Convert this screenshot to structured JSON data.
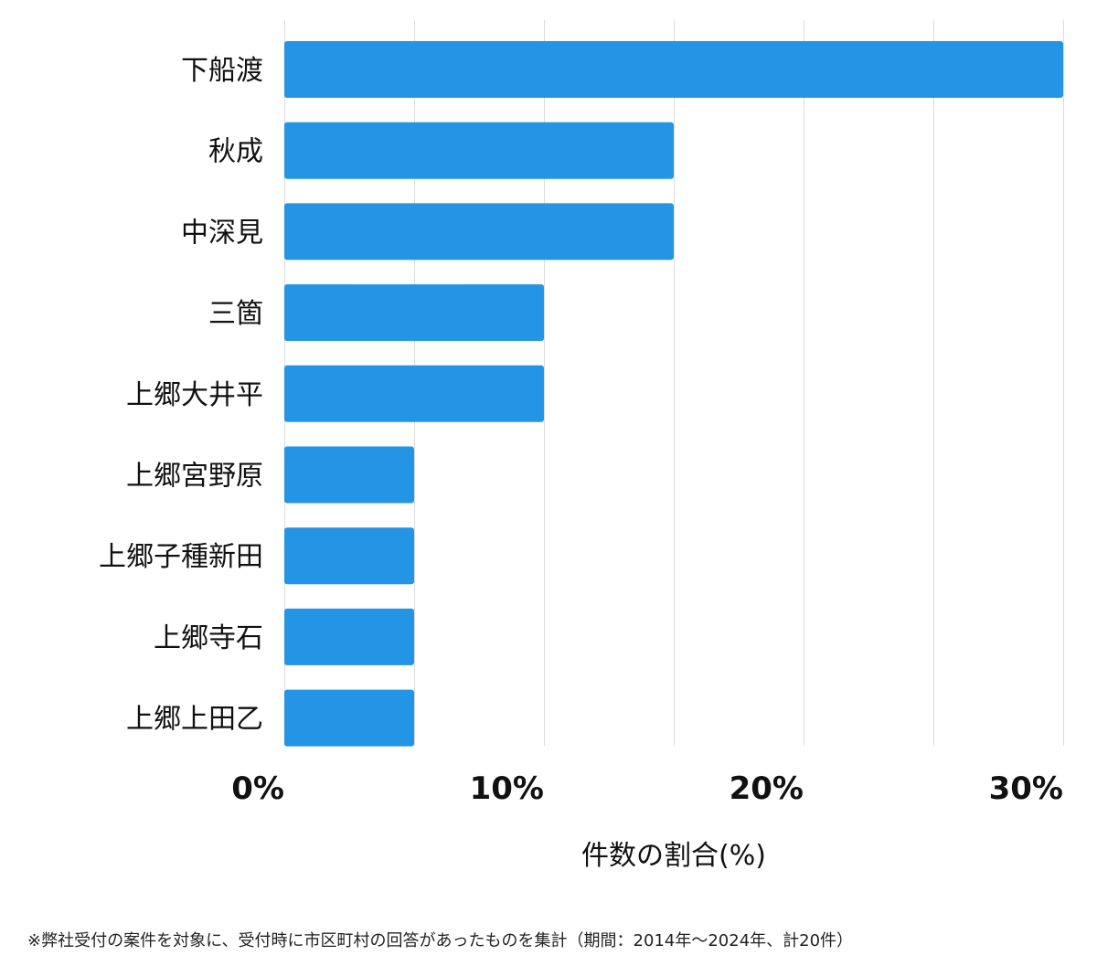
{
  "chart_data": {
    "type": "bar",
    "orientation": "horizontal",
    "categories": [
      "下船渡",
      "秋成",
      "中深見",
      "三箇",
      "上郷大井平",
      "上郷宮野原",
      "上郷子種新田",
      "上郷寺石",
      "上郷上田乙"
    ],
    "values": [
      30,
      15,
      15,
      10,
      10,
      5,
      5,
      5,
      5
    ],
    "xlabel": "件数の割合(%)",
    "xlim": [
      0,
      30
    ],
    "x_ticks": [
      0,
      10,
      20,
      30
    ],
    "x_tick_labels": [
      "0%",
      "10%",
      "20%",
      "30%"
    ],
    "grid": "vertical",
    "bar_color": "#2494e4"
  },
  "footnote": "※弊社受付の案件を対象に、受付時に市区町村の回答があったものを集計（期間：2014年～2024年、計20件）"
}
